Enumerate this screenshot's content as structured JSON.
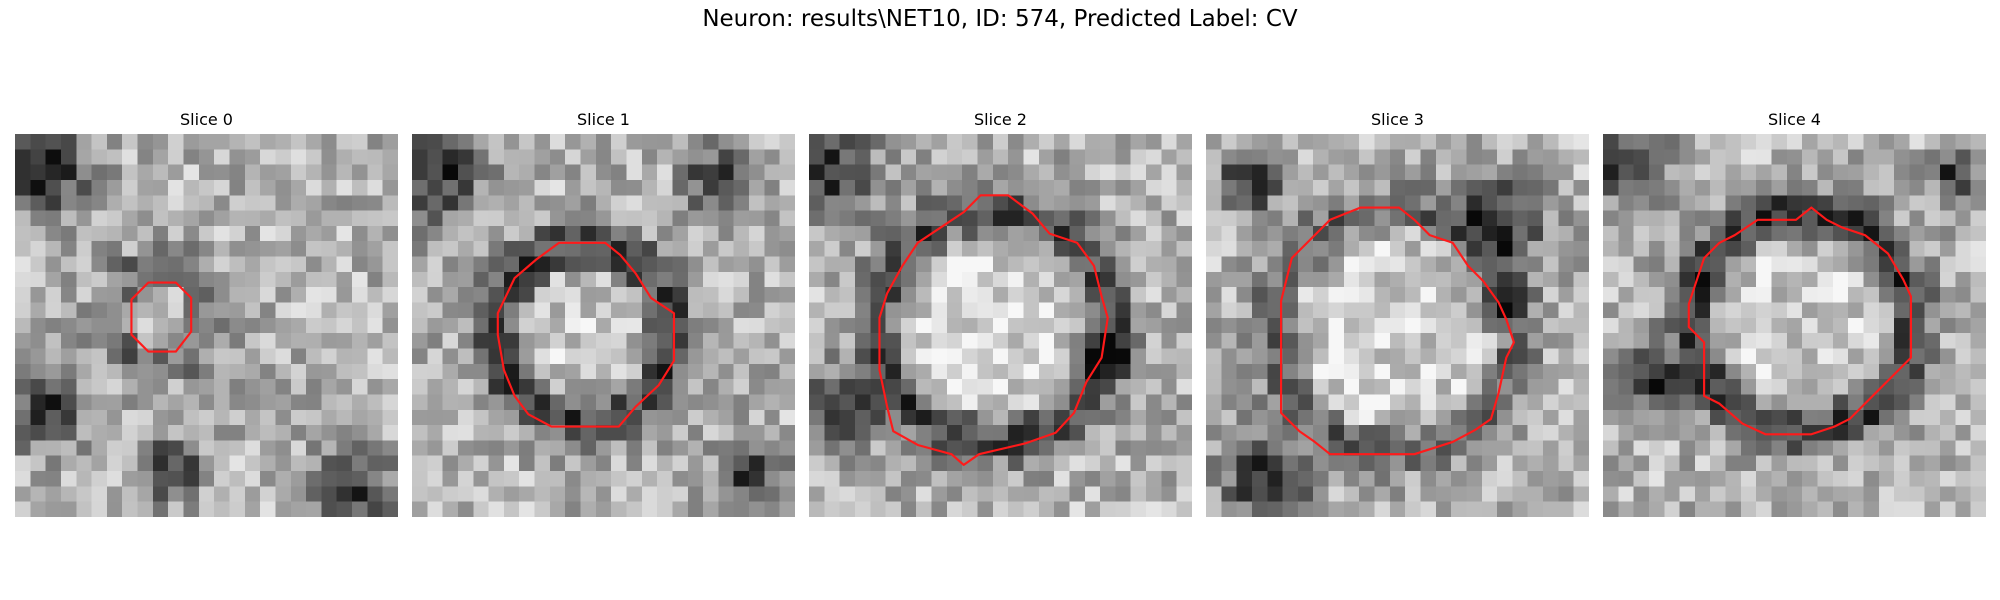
{
  "figure": {
    "title": "Neuron: results\\NET10, ID: 574, Predicted Label: CV"
  },
  "panels": [
    {
      "title": "Slice 0"
    },
    {
      "title": "Slice 1"
    },
    {
      "title": "Slice 2"
    },
    {
      "title": "Slice 3"
    },
    {
      "title": "Slice 4"
    }
  ],
  "colors": {
    "contour": "#ff1a1a",
    "background": "#ffffff"
  }
}
